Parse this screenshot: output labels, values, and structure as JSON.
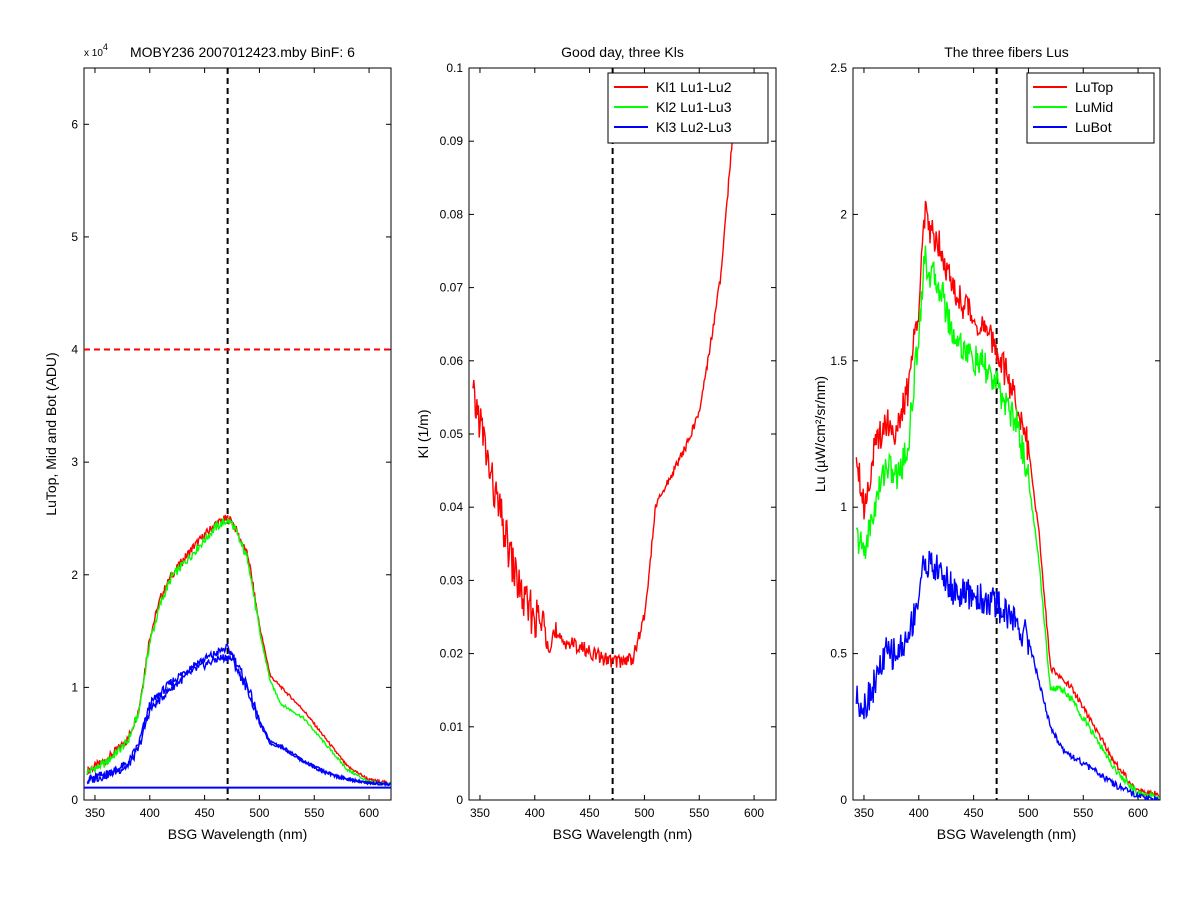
{
  "chart_data": [
    {
      "type": "line",
      "title": "MOBY236  2007012423.mby BinF: 6",
      "exponent_base": "x 10",
      "exponent_power": "4",
      "xlabel": "BSG Wavelength (nm)",
      "ylabel": "LuTop, Mid and Bot (ADU)",
      "xlim": [
        340,
        620
      ],
      "ylim": [
        0,
        65000
      ],
      "x_ticks": [
        350,
        400,
        450,
        500,
        550,
        600
      ],
      "y_ticks": [
        0,
        10000,
        20000,
        30000,
        40000,
        50000,
        60000
      ],
      "y_tick_labels": [
        "0",
        "1",
        "2",
        "3",
        "4",
        "5",
        "6"
      ],
      "reference_lines": [
        {
          "orientation": "vertical",
          "value": 471,
          "color": "#000000",
          "style": "dashed"
        },
        {
          "orientation": "horizontal",
          "value": 40000,
          "color": "#ff0000",
          "style": "dashed"
        },
        {
          "orientation": "horizontal",
          "value": 1100,
          "color": "#0000ff",
          "style": "solid"
        }
      ],
      "series": [
        {
          "color": "#ff0000",
          "x": [
            343,
            360,
            380,
            390,
            400,
            410,
            420,
            440,
            460,
            470,
            475,
            490,
            500,
            510,
            520,
            540,
            560,
            580,
            600,
            620
          ],
          "y": [
            2600,
            3500,
            5400,
            8000,
            14500,
            18000,
            20000,
            22500,
            24500,
            25000,
            24800,
            21500,
            15500,
            11000,
            10000,
            8000,
            5500,
            3000,
            1800,
            1500
          ]
        },
        {
          "color": "#00ff00",
          "x": [
            343,
            360,
            380,
            390,
            400,
            410,
            420,
            440,
            460,
            470,
            475,
            490,
            500,
            510,
            520,
            540,
            560,
            580,
            600,
            620
          ],
          "y": [
            2500,
            3300,
            5200,
            7800,
            14000,
            17500,
            19800,
            22000,
            24200,
            24800,
            24600,
            21200,
            15000,
            10500,
            8500,
            7300,
            5000,
            2700,
            1600,
            1400
          ]
        },
        {
          "color": "#0000ff",
          "x": [
            343,
            360,
            380,
            390,
            400,
            410,
            420,
            440,
            460,
            470,
            475,
            490,
            500,
            510,
            520,
            540,
            560,
            580,
            600,
            620
          ],
          "y": [
            1800,
            2300,
            3200,
            5000,
            8500,
            9500,
            10500,
            12000,
            13000,
            13500,
            13000,
            10000,
            7000,
            5200,
            4800,
            3500,
            2500,
            1900,
            1500,
            1400
          ]
        },
        {
          "color": "#0000ff",
          "x": [
            343,
            360,
            380,
            390,
            400,
            410,
            420,
            440,
            460,
            470,
            475,
            490,
            500,
            510,
            520,
            540,
            560,
            580,
            600,
            620
          ],
          "y": [
            1700,
            2200,
            3000,
            4600,
            8000,
            9000,
            10000,
            11500,
            12500,
            12700,
            12500,
            9600,
            6800,
            5000,
            4700,
            3400,
            2400,
            1800,
            1500,
            1400
          ]
        }
      ]
    },
    {
      "type": "line",
      "title": "Good day, three Kls",
      "xlabel": "BSG Wavelength (nm)",
      "ylabel": "Kl (1/m)",
      "xlim": [
        340,
        620
      ],
      "ylim": [
        0,
        0.1
      ],
      "x_ticks": [
        350,
        400,
        450,
        500,
        550,
        600
      ],
      "y_ticks": [
        0,
        0.01,
        0.02,
        0.03,
        0.04,
        0.05,
        0.06,
        0.07,
        0.08,
        0.09,
        0.1
      ],
      "y_tick_labels": [
        "0",
        "0.01",
        "0.02",
        "0.03",
        "0.04",
        "0.05",
        "0.06",
        "0.07",
        "0.08",
        "0.09",
        "0.1"
      ],
      "reference_lines": [
        {
          "orientation": "vertical",
          "value": 471,
          "color": "#000000",
          "style": "dashed"
        }
      ],
      "legend_position": "top-right",
      "legend": [
        "Kl1 Lu1-Lu2",
        "Kl2 Lu1-Lu3",
        "Kl3 Lu2-Lu3"
      ],
      "series": [
        {
          "name": "Kl1 Lu1-Lu2",
          "color": "#ff0000",
          "x": [
            343,
            350,
            360,
            370,
            380,
            390,
            400,
            420,
            440,
            460,
            470,
            480,
            490,
            500,
            505,
            510,
            520,
            530,
            540,
            550,
            560,
            570,
            580,
            585
          ],
          "y": [
            0.055,
            0.052,
            0.044,
            0.038,
            0.032,
            0.027,
            0.025,
            0.022,
            0.021,
            0.0195,
            0.019,
            0.019,
            0.0195,
            0.025,
            0.032,
            0.04,
            0.043,
            0.046,
            0.049,
            0.053,
            0.062,
            0.072,
            0.09,
            0.1
          ]
        },
        {
          "name": "Kl2 Lu1-Lu3",
          "color": "#00ff00",
          "x": [],
          "y": []
        },
        {
          "name": "Kl3 Lu2-Lu3",
          "color": "#0000ff",
          "x": [],
          "y": []
        }
      ]
    },
    {
      "type": "line",
      "title": "The three fibers Lus",
      "xlabel": "BSG Wavelength (nm)",
      "ylabel": "Lu (µW/cm²/sr/nm)",
      "xlim": [
        340,
        620
      ],
      "ylim": [
        0,
        2.5
      ],
      "x_ticks": [
        350,
        400,
        450,
        500,
        550,
        600
      ],
      "y_ticks": [
        0,
        0.5,
        1,
        1.5,
        2,
        2.5
      ],
      "y_tick_labels": [
        "0",
        "0.5",
        "1",
        "1.5",
        "2",
        "2.5"
      ],
      "reference_lines": [
        {
          "orientation": "vertical",
          "value": 471,
          "color": "#000000",
          "style": "dashed"
        }
      ],
      "legend_position": "top-right",
      "legend": [
        "LuTop",
        "LuMid",
        "LuBot"
      ],
      "series": [
        {
          "name": "LuTop",
          "color": "#ff0000",
          "x": [
            343,
            350,
            360,
            370,
            380,
            390,
            400,
            405,
            410,
            420,
            430,
            440,
            450,
            460,
            470,
            480,
            490,
            500,
            510,
            520,
            530,
            540,
            560,
            580,
            600,
            620
          ],
          "y": [
            1.2,
            1.0,
            1.2,
            1.3,
            1.25,
            1.4,
            1.7,
            2.0,
            1.95,
            1.9,
            1.75,
            1.7,
            1.65,
            1.6,
            1.55,
            1.45,
            1.35,
            1.2,
            0.9,
            0.45,
            0.42,
            0.38,
            0.25,
            0.12,
            0.03,
            0.02
          ]
        },
        {
          "name": "LuMid",
          "color": "#00ff00",
          "x": [
            343,
            350,
            360,
            370,
            380,
            390,
            400,
            405,
            410,
            420,
            430,
            440,
            450,
            460,
            470,
            480,
            490,
            500,
            510,
            520,
            530,
            540,
            560,
            580,
            600,
            620
          ],
          "y": [
            0.9,
            0.85,
            1.0,
            1.15,
            1.1,
            1.2,
            1.6,
            1.85,
            1.8,
            1.75,
            1.6,
            1.55,
            1.5,
            1.48,
            1.42,
            1.35,
            1.28,
            1.1,
            0.8,
            0.38,
            0.38,
            0.34,
            0.22,
            0.1,
            0.02,
            0.01
          ]
        },
        {
          "name": "LuBot",
          "color": "#0000ff",
          "x": [
            343,
            350,
            360,
            370,
            380,
            390,
            400,
            405,
            410,
            420,
            430,
            440,
            450,
            460,
            470,
            480,
            490,
            500,
            510,
            520,
            530,
            540,
            560,
            580,
            600,
            620
          ],
          "y": [
            0.35,
            0.32,
            0.4,
            0.5,
            0.5,
            0.55,
            0.7,
            0.82,
            0.8,
            0.78,
            0.72,
            0.7,
            0.7,
            0.68,
            0.67,
            0.64,
            0.6,
            0.55,
            0.4,
            0.25,
            0.18,
            0.15,
            0.1,
            0.05,
            0.01,
            0.0
          ]
        }
      ]
    }
  ]
}
